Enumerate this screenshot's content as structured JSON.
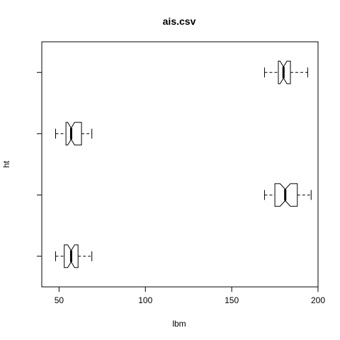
{
  "chart_data": {
    "type": "boxplot",
    "title": "ais.csv",
    "xlabel": "lbm",
    "ylabel": "ht",
    "xlim": [
      40,
      200
    ],
    "xticks": [
      50,
      100,
      150,
      200
    ],
    "orientation": "horizontal",
    "notched": true,
    "grid": false,
    "boxes": [
      {
        "whisker_low": 48,
        "q1": 53,
        "notch_low": 55,
        "median": 57,
        "notch_high": 59,
        "q3": 61,
        "whisker_high": 69
      },
      {
        "whisker_low": 169,
        "q1": 175,
        "notch_low": 178,
        "median": 181,
        "notch_high": 184,
        "q3": 188,
        "whisker_high": 196
      },
      {
        "whisker_low": 48,
        "q1": 54,
        "notch_low": 55,
        "median": 57,
        "notch_high": 59,
        "q3": 63,
        "whisker_high": 69
      },
      {
        "whisker_low": 169,
        "q1": 177,
        "notch_low": 178,
        "median": 180,
        "notch_high": 182,
        "q3": 184,
        "whisker_high": 194
      }
    ]
  }
}
